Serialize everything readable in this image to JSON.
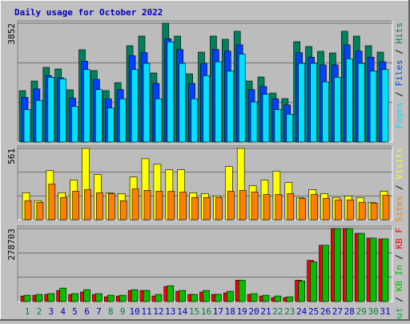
{
  "separator": "/",
  "chart_data": [
    {
      "type": "bar",
      "title": "Daily usage for October 2022",
      "categories": [
        "1",
        "2",
        "3",
        "4",
        "5",
        "6",
        "7",
        "8",
        "9",
        "10",
        "11",
        "12",
        "13",
        "14",
        "15",
        "16",
        "17",
        "18",
        "19",
        "20",
        "21",
        "22",
        "23",
        "24",
        "25",
        "26",
        "27",
        "28",
        "29",
        "30",
        "31"
      ],
      "weekends": [
        "1",
        "2",
        "8",
        "9",
        "15",
        "16",
        "22",
        "23",
        "29",
        "30"
      ],
      "label_color": "#0000c0",
      "weekend_color": "#008040",
      "series": [
        {
          "name": "Hits",
          "color": "#00805c",
          "values": [
            1666,
            1978,
            2421,
            2369,
            1692,
            2993,
            2317,
            1666,
            1926,
            3123,
            3436,
            2238,
            3852,
            3436,
            2212,
            2915,
            3436,
            3332,
            3592,
            1978,
            2108,
            1588,
            1406,
            3254,
            3097,
            2941,
            2889,
            3592,
            3436,
            3123,
            2915
          ]
        },
        {
          "name": "Files",
          "color": "#0040ff",
          "values": [
            1450,
            1720,
            2150,
            2080,
            1430,
            2620,
            2030,
            1400,
            1700,
            2800,
            2900,
            1900,
            3350,
            3000,
            1900,
            2550,
            3000,
            2950,
            3150,
            1700,
            1800,
            1400,
            1200,
            2900,
            2750,
            2500,
            2500,
            3150,
            2950,
            2750,
            2600
          ]
        },
        {
          "name": "Pages",
          "color": "#00e0ff",
          "values": [
            1050,
            1350,
            2100,
            2050,
            1150,
            2350,
            1700,
            1100,
            1400,
            2350,
            2550,
            1400,
            3250,
            2550,
            1400,
            2150,
            2600,
            2300,
            2850,
            1300,
            1550,
            1050,
            900,
            2550,
            2550,
            1950,
            2100,
            2700,
            2550,
            2300,
            2350
          ]
        }
      ],
      "ylim": [
        0,
        3852
      ],
      "yticks": [
        3852
      ],
      "grid_lines": [
        1284,
        2568
      ]
    },
    {
      "type": "bar",
      "series": [
        {
          "name": "Visits",
          "color": "#ffff00",
          "values": [
            212,
            150,
            386,
            212,
            312,
            561,
            355,
            212,
            206,
            336,
            480,
            436,
            393,
            393,
            212,
            206,
            187,
            418,
            561,
            268,
            312,
            380,
            293,
            175,
            237,
            206,
            175,
            187,
            175,
            137,
            224
          ]
        },
        {
          "name": "Sites",
          "color": "#ff8000",
          "values": [
            150,
            137,
            280,
            175,
            224,
            237,
            212,
            206,
            150,
            243,
            231,
            224,
            224,
            218,
            175,
            175,
            175,
            224,
            231,
            218,
            199,
            199,
            206,
            168,
            199,
            168,
            156,
            156,
            137,
            131,
            193
          ]
        }
      ],
      "ylim": [
        0,
        561
      ],
      "yticks": [
        561
      ],
      "grid_lines": [
        187,
        374
      ]
    },
    {
      "type": "bar",
      "series": [
        {
          "name": "KB F",
          "color": "#ff0000",
          "values": [
            21200,
            24200,
            27300,
            42400,
            27300,
            36300,
            27300,
            18200,
            21200,
            42400,
            42400,
            21200,
            57600,
            39400,
            27300,
            36300,
            27300,
            33300,
            81800,
            27300,
            21200,
            15100,
            15100,
            81800,
            157500,
            215000,
            278703,
            278703,
            260500,
            242300,
            239300
          ]
        },
        {
          "name": "KB In",
          "color": "#00c000",
          "values": [
            24200,
            27300,
            30300,
            51500,
            30300,
            45400,
            30300,
            24200,
            24200,
            45400,
            42400,
            27300,
            60600,
            42400,
            27300,
            42400,
            27300,
            39400,
            81800,
            30300,
            24200,
            21200,
            18200,
            78700,
            151400,
            215000,
            278703,
            278703,
            260500,
            242300,
            239300
          ]
        },
        {
          "name": "KB Out",
          "color": "#00a040",
          "values": []
        }
      ],
      "ylim": [
        0,
        278703
      ],
      "yticks": [
        278703
      ],
      "grid_lines": [
        92900,
        185800
      ]
    }
  ]
}
